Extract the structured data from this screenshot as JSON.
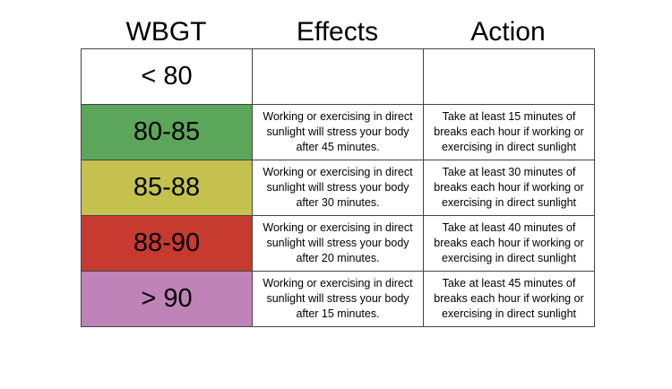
{
  "headers": {
    "wbgt": "WBGT",
    "effects": "Effects",
    "action": "Action"
  },
  "rows": [
    {
      "range": "< 80",
      "color": "#ffffff",
      "effects": "",
      "action": ""
    },
    {
      "range": "80-85",
      "color": "#5ba65b",
      "effects": "Working or exercising in direct sunlight will stress your body after 45 minutes.",
      "action": "Take at least 15 minutes of breaks each hour if working or exercising in direct sunlight"
    },
    {
      "range": "85-88",
      "color": "#c5c14f",
      "effects": "Working or exercising in direct sunlight will stress your body after 30 minutes.",
      "action": "Take at least 30 minutes of breaks each hour if working or exercising in direct sunlight"
    },
    {
      "range": "88-90",
      "color": "#c63a30",
      "effects": "Working or exercising in direct sunlight will stress your body after 20 minutes.",
      "action": "Take at least 40 minutes of breaks each hour if working or exercising in direct sunlight"
    },
    {
      "range": "> 90",
      "color": "#c083b8",
      "effects": "Working or exercising in direct sunlight will stress your body after 15 minutes.",
      "action": "Take at least 45 minutes of breaks each hour if working or exercising in direct sunlight"
    }
  ]
}
